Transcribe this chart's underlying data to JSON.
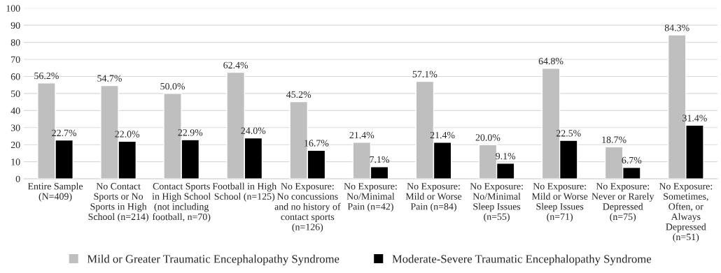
{
  "chart_data": {
    "type": "bar",
    "categories": [
      "Entire Sample\n(N=409)",
      "No Contact\nSports or No\nSports in High\nSchool (n=214)",
      "Contact Sports\nin High School\n(not including\nfootball, n=70)",
      "Football in High\nSchool (n=125)",
      "No Exposure:\nNo concussions\nand no history of\ncontact sports\n(n=126)",
      "No Exposure:\nNo/Minimal\nPain (n=42)",
      "No Exposure:\nMild or Worse\nPain (n=84)",
      "No Exposure:\nNo/Minimal\nSleep Issues\n(n=55)",
      "No Exposure:\nMild or Worse\nSleep Issues\n(n=71)",
      "No Exposure:\nNever or Rarely\nDepressed\n(n=75)",
      "No Exposure:\nSometimes,\nOften, or\nAlways\nDepressed\n(n=51)"
    ],
    "series": [
      {
        "name": "Mild or Greater Traumatic Encephalopathy Syndrome",
        "color": "#bfbfbf",
        "values": [
          56.2,
          54.7,
          50.0,
          62.4,
          45.2,
          21.4,
          57.1,
          20.0,
          64.8,
          18.7,
          84.3
        ],
        "value_labels": [
          "56.2%",
          "54.7%",
          "50.0%",
          "62.4%",
          "45.2%",
          "21.4%",
          "57.1%",
          "20.0%",
          "64.8%",
          "18.7%",
          "84.3%"
        ]
      },
      {
        "name": "Moderate-Severe Traumatic Encephalopathy Syndrome",
        "color": "#000000",
        "values": [
          22.7,
          22.0,
          22.9,
          24.0,
          16.7,
          7.1,
          21.4,
          9.1,
          22.5,
          6.7,
          31.4
        ],
        "value_labels": [
          "22.7%",
          "22.0%",
          "22.9%",
          "24.0%",
          "16.7%",
          "7.1%",
          "21.4%",
          "9.1%",
          "22.5%",
          "6.7%",
          "31.4%"
        ]
      }
    ],
    "ylim": [
      0,
      100
    ],
    "yticks": [
      0,
      10,
      20,
      30,
      40,
      50,
      60,
      70,
      80,
      90,
      100
    ],
    "grid": "y",
    "legend": "bottom"
  }
}
